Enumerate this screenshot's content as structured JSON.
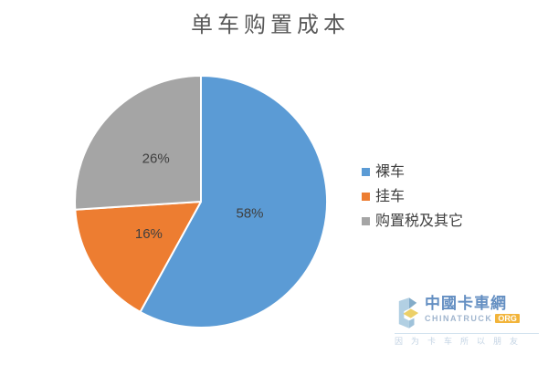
{
  "chart_data": {
    "type": "pie",
    "title": "单车购置成本",
    "categories": [
      "裸车",
      "挂车",
      "购置税及其它"
    ],
    "values": [
      58,
      16,
      26
    ],
    "value_unit": "%",
    "colors": [
      "#5B9BD5",
      "#ED7D31",
      "#A5A5A5"
    ],
    "label_format": "percent_inside",
    "labels_shown": [
      "58%",
      "16%",
      "26%"
    ],
    "legend_position": "right",
    "start_angle_deg": 0,
    "direction": "clockwise",
    "slice_border_color": "#FFFFFF",
    "title_color": "#595959",
    "label_color": "#3F3F3F"
  },
  "legend": {
    "items": [
      {
        "label": "裸车",
        "color": "#5B9BD5"
      },
      {
        "label": "挂车",
        "color": "#ED7D31"
      },
      {
        "label": "购置税及其它",
        "color": "#A5A5A5"
      }
    ]
  },
  "watermark": {
    "brand_cn": "中國卡車網",
    "brand_en": "CHINATRUCK",
    "brand_tld": "ORG",
    "slogan": "因为卡车所以朋友",
    "brand_color": "#4A7CB8",
    "tld_bg_color": "#F0A818"
  }
}
